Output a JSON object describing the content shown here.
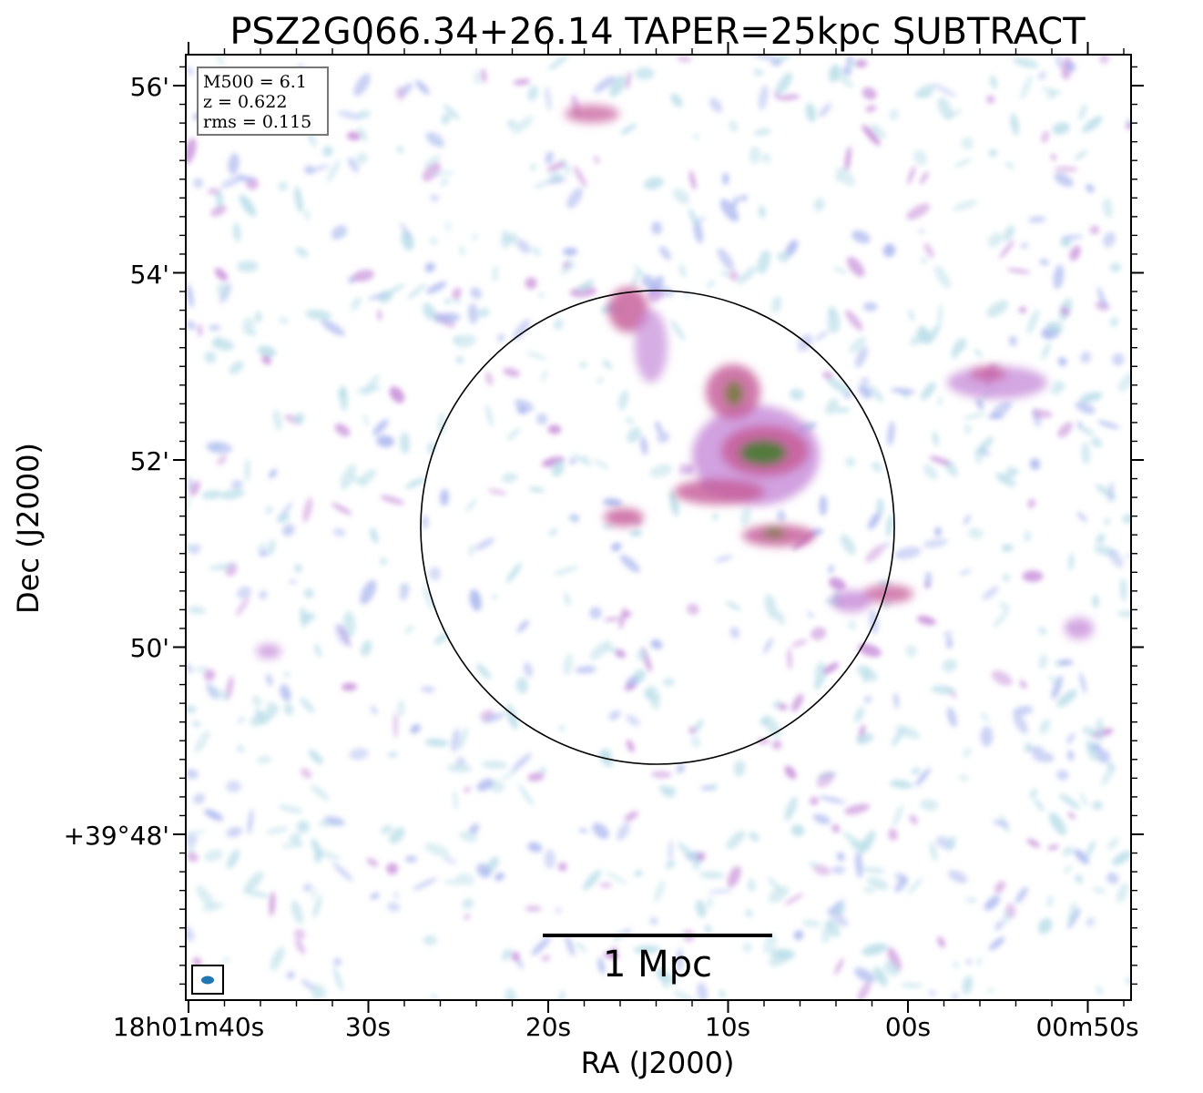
{
  "title": "PSZ2G066.34+26.14 TAPER=25kpc SUBTRACT",
  "x_axis": {
    "label": "RA (J2000)",
    "ticks": [
      "18h01m40s",
      "30s",
      "20s",
      "10s",
      "00s",
      "00m50s"
    ]
  },
  "y_axis": {
    "label": "Dec (J2000)",
    "ticks": [
      "56'",
      "54'",
      "52'",
      "50'",
      "+39°48'"
    ]
  },
  "info_box": {
    "lines": [
      "M500 = 6.1",
      "z = 0.622",
      "rms = 0.115"
    ]
  },
  "scale_bar": {
    "label": "1 Mpc"
  },
  "colors": {
    "low": "#b8dde8",
    "mid_blue": "#a8b4ee",
    "mid_purple": "#c58ad8",
    "high_pink": "#c8609c",
    "peak_green": "#3f7f2a",
    "beam": "#1f77b4"
  }
}
